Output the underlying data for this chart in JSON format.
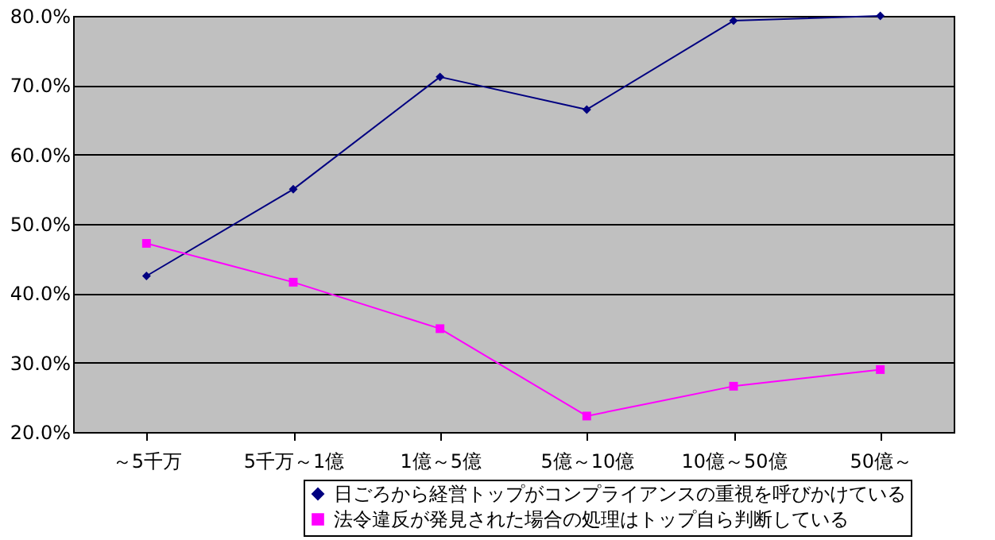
{
  "chart_data": {
    "type": "line",
    "categories": [
      "～5千万",
      "5千万～1億",
      "1億～5億",
      "5億～10億",
      "10億～50億",
      "50億～"
    ],
    "series": [
      {
        "name": "日ごろから経営トップがコンプライアンスの重視を呼びかけている",
        "color": "#000080",
        "marker": "diamond",
        "values": [
          42.5,
          55.0,
          71.2,
          66.5,
          79.3,
          80.0
        ]
      },
      {
        "name": "法令違反が発見された場合の処理はトップ自ら判断している",
        "color": "#ff00ff",
        "marker": "square",
        "values": [
          47.2,
          41.6,
          34.9,
          22.3,
          26.6,
          29.0
        ]
      }
    ],
    "ylim": [
      20,
      80
    ],
    "yticks": [
      {
        "value": 20,
        "label": "20.0%"
      },
      {
        "value": 30,
        "label": "30.0%"
      },
      {
        "value": 40,
        "label": "40.0%"
      },
      {
        "value": 50,
        "label": "50.0%"
      },
      {
        "value": 60,
        "label": "60.0%"
      },
      {
        "value": 70,
        "label": "70.0%"
      },
      {
        "value": 80,
        "label": "80.0%"
      }
    ],
    "grid": "y",
    "legend": "bottom right",
    "line_style": "solid"
  }
}
